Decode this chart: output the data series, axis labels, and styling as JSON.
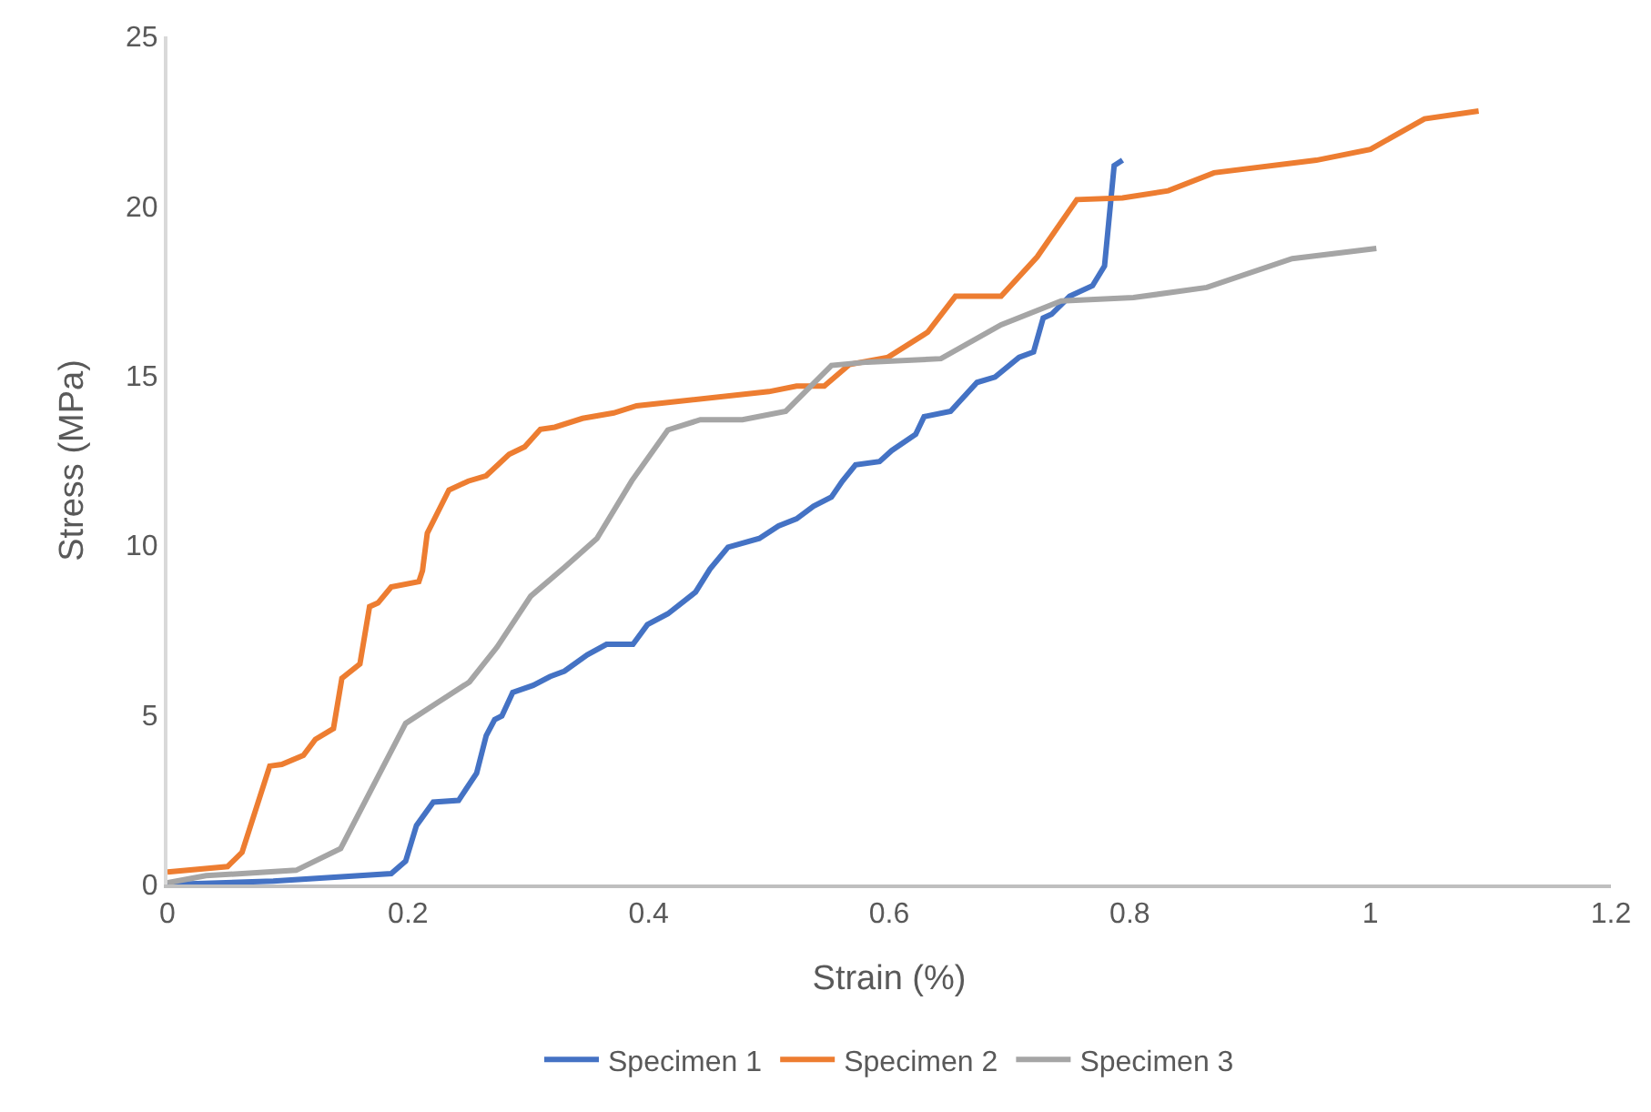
{
  "chart_data": {
    "type": "line",
    "xlabel": "Strain (%)",
    "ylabel": "Stress (MPa)",
    "xlim": [
      0,
      1.2
    ],
    "xticks": [
      0,
      0.2,
      0.4,
      0.6,
      0.8,
      1,
      1.2
    ],
    "ylim": [
      0,
      25
    ],
    "yticks": [
      0,
      5,
      10,
      15,
      20,
      25
    ],
    "grid": false,
    "legend": "bottom",
    "marker": "none",
    "line_style": "solid",
    "series": [
      {
        "name": "Specimen 1",
        "color": "#4472c4",
        "x": [
          0,
          0.088,
          0.186,
          0.198,
          0.207,
          0.221,
          0.242,
          0.257,
          0.265,
          0.272,
          0.278,
          0.287,
          0.304,
          0.318,
          0.33,
          0.349,
          0.365,
          0.387,
          0.399,
          0.416,
          0.439,
          0.451,
          0.466,
          0.492,
          0.508,
          0.523,
          0.537,
          0.552,
          0.561,
          0.572,
          0.592,
          0.602,
          0.622,
          0.629,
          0.651,
          0.673,
          0.688,
          0.708,
          0.72,
          0.728,
          0.735,
          0.75,
          0.769,
          0.779,
          0.787,
          0.794
        ],
        "values": [
          0,
          0.1,
          0.32,
          0.69,
          1.74,
          2.43,
          2.48,
          3.28,
          4.39,
          4.86,
          4.97,
          5.66,
          5.87,
          6.13,
          6.29,
          6.77,
          7.08,
          7.08,
          7.66,
          7.98,
          8.62,
          9.3,
          9.94,
          10.2,
          10.57,
          10.78,
          11.15,
          11.42,
          11.89,
          12.37,
          12.47,
          12.79,
          13.27,
          13.79,
          13.95,
          14.8,
          14.96,
          15.54,
          15.7,
          16.7,
          16.81,
          17.34,
          17.65,
          18.23,
          21.19,
          21.35
        ]
      },
      {
        "name": "Specimen 2",
        "color": "#ed7d31",
        "x": [
          0,
          0.05,
          0.062,
          0.085,
          0.095,
          0.113,
          0.123,
          0.138,
          0.145,
          0.16,
          0.168,
          0.175,
          0.186,
          0.209,
          0.212,
          0.216,
          0.234,
          0.25,
          0.265,
          0.284,
          0.297,
          0.31,
          0.322,
          0.345,
          0.371,
          0.39,
          0.5,
          0.523,
          0.546,
          0.567,
          0.599,
          0.632,
          0.655,
          0.693,
          0.723,
          0.756,
          0.794,
          0.832,
          0.87,
          0.955,
          1.0,
          1.045,
          1.09
        ],
        "values": [
          0.37,
          0.53,
          0.95,
          3.49,
          3.54,
          3.81,
          4.28,
          4.6,
          6.08,
          6.5,
          8.19,
          8.3,
          8.77,
          8.93,
          9.25,
          10.36,
          11.63,
          11.89,
          12.05,
          12.68,
          12.9,
          13.42,
          13.48,
          13.74,
          13.9,
          14.11,
          14.53,
          14.69,
          14.69,
          15.33,
          15.54,
          16.28,
          17.34,
          17.34,
          18.5,
          20.19,
          20.24,
          20.45,
          20.98,
          21.35,
          21.67,
          22.57,
          22.8
        ]
      },
      {
        "name": "Specimen 3",
        "color": "#a5a5a5",
        "x": [
          0,
          0.032,
          0.107,
          0.144,
          0.198,
          0.224,
          0.251,
          0.274,
          0.302,
          0.33,
          0.357,
          0.386,
          0.416,
          0.443,
          0.478,
          0.514,
          0.552,
          0.582,
          0.643,
          0.693,
          0.743,
          0.803,
          0.864,
          0.935,
          1.005
        ],
        "values": [
          0.05,
          0.26,
          0.42,
          1.06,
          4.75,
          5.35,
          5.97,
          7.0,
          8.5,
          9.35,
          10.2,
          11.9,
          13.4,
          13.7,
          13.7,
          13.95,
          15.3,
          15.4,
          15.5,
          16.5,
          17.2,
          17.3,
          17.6,
          18.45,
          18.75
        ]
      }
    ]
  }
}
